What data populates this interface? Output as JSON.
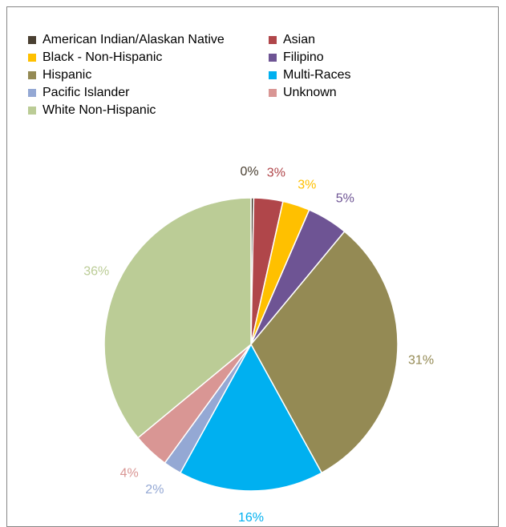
{
  "chart_data": {
    "type": "pie",
    "title": "",
    "legend_position": "top",
    "slices": [
      {
        "label": "American Indian/Alaskan Native",
        "value": 0.3,
        "display": "0%",
        "color": "#4a4032"
      },
      {
        "label": "Asian",
        "value": 3.2,
        "display": "3%",
        "color": "#b0464a"
      },
      {
        "label": "Black - Non-Hispanic",
        "value": 3.0,
        "display": "3%",
        "color": "#ffc000"
      },
      {
        "label": "Filipino",
        "value": 4.5,
        "display": "5%",
        "color": "#6e5494"
      },
      {
        "label": "Hispanic",
        "value": 31.0,
        "display": "31%",
        "color": "#948a54"
      },
      {
        "label": "Multi-Races",
        "value": 16.0,
        "display": "16%",
        "color": "#00b0f0"
      },
      {
        "label": "Pacific Islander",
        "value": 2.0,
        "display": "2%",
        "color": "#94a8d4"
      },
      {
        "label": "Unknown",
        "value": 4.0,
        "display": "4%",
        "color": "#d99694"
      },
      {
        "label": "White Non-Hispanic",
        "value": 36.0,
        "display": "36%",
        "color": "#bbcc96"
      }
    ]
  }
}
